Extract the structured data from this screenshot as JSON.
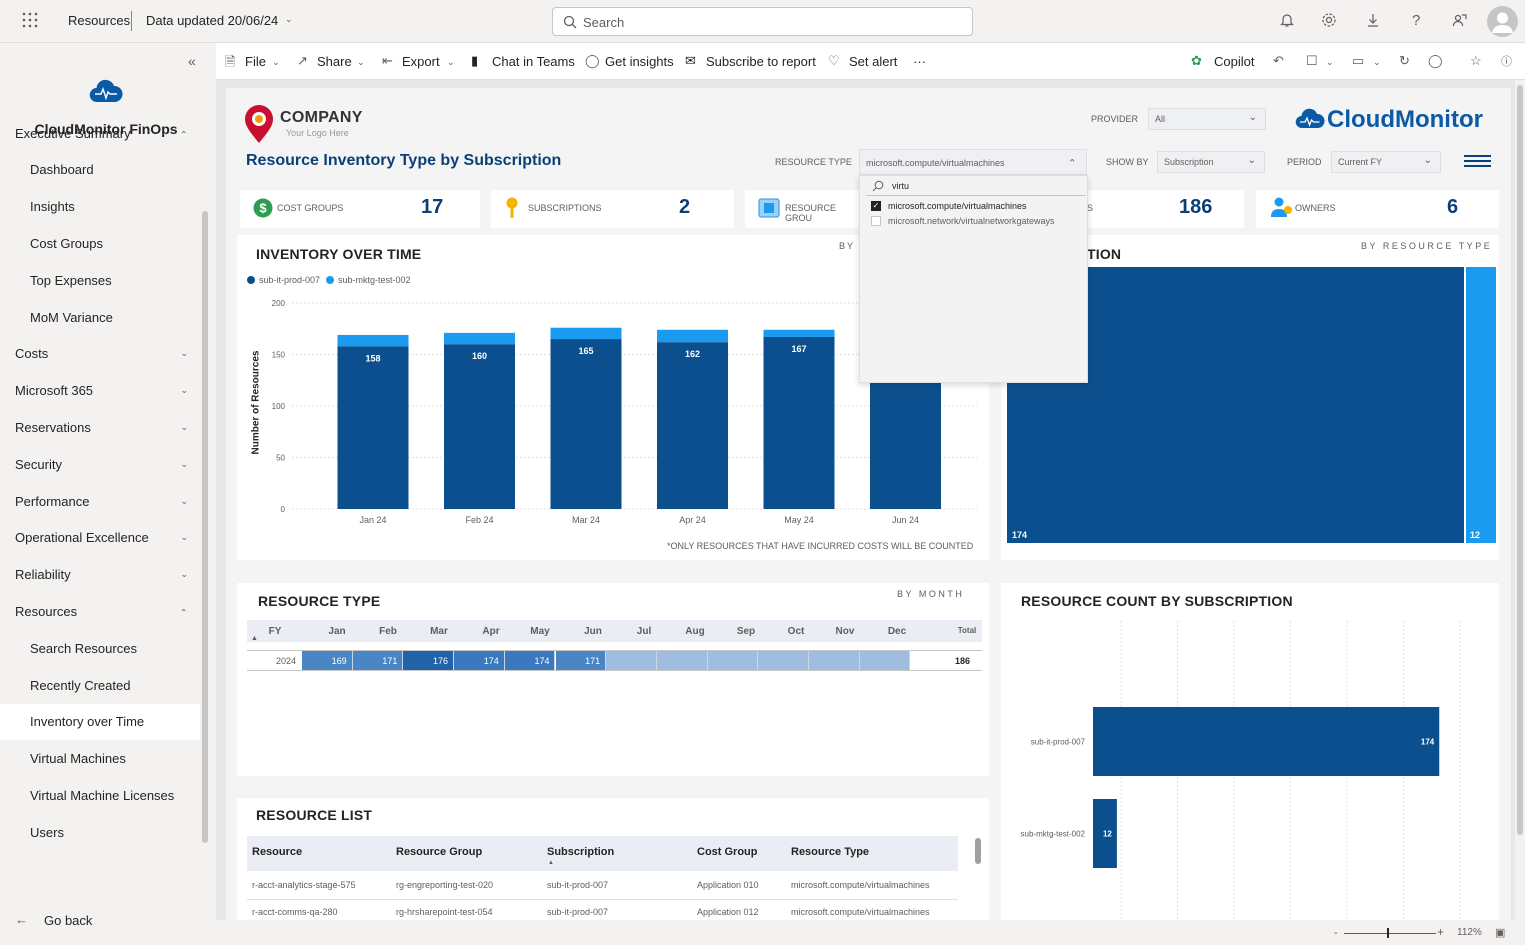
{
  "topbar": {
    "breadcrumb": "Resources",
    "data_updated": "Data updated 20/06/24",
    "search_placeholder": "Search"
  },
  "sidebar": {
    "app_title": "CloudMonitor FinOps",
    "items": [
      {
        "label": "Executive Summary",
        "level": 1,
        "expanded": true
      },
      {
        "label": "Dashboard",
        "level": 2
      },
      {
        "label": "Insights",
        "level": 2
      },
      {
        "label": "Cost Groups",
        "level": 2
      },
      {
        "label": "Top Expenses",
        "level": 2
      },
      {
        "label": "MoM Variance",
        "level": 2
      },
      {
        "label": "Costs",
        "level": 1
      },
      {
        "label": "Microsoft 365",
        "level": 1
      },
      {
        "label": "Reservations",
        "level": 1
      },
      {
        "label": "Security",
        "level": 1
      },
      {
        "label": "Performance",
        "level": 1
      },
      {
        "label": "Operational Excellence",
        "level": 1
      },
      {
        "label": "Reliability",
        "level": 1
      },
      {
        "label": "Resources",
        "level": 1,
        "expanded": true
      },
      {
        "label": "Search Resources",
        "level": 2
      },
      {
        "label": "Recently Created",
        "level": 2
      },
      {
        "label": "Inventory over Time",
        "level": 2,
        "active": true
      },
      {
        "label": "Virtual Machines",
        "level": 2
      },
      {
        "label": "Virtual Machine Licenses",
        "level": 2
      },
      {
        "label": "Users",
        "level": 2
      }
    ],
    "go_back": "Go back"
  },
  "toolbar": {
    "file": "File",
    "share": "Share",
    "export": "Export",
    "chat": "Chat in Teams",
    "insights": "Get insights",
    "subscribe": "Subscribe to report",
    "alert": "Set alert",
    "more": "···",
    "copilot": "Copilot"
  },
  "report": {
    "company": "COMPANY",
    "company_tag": "Your Logo Here",
    "title": "Resource Inventory Type by Subscription",
    "brand": "CloudMonitor",
    "filters": {
      "provider_label": "PROVIDER",
      "provider_value": "All",
      "resource_type_label": "RESOURCE TYPE",
      "resource_type_value": "microsoft.compute/virtualmachines",
      "show_by_label": "SHOW BY",
      "show_by_value": "Subscription",
      "period_label": "PERIOD",
      "period_value": "Current FY"
    },
    "dropdown": {
      "search_text": "virtu",
      "options": [
        {
          "label": "microsoft.compute/virtualmachines",
          "checked": true
        },
        {
          "label": "microsoft.network/virtualnetworkgateways",
          "checked": false
        }
      ]
    },
    "kpis": [
      {
        "label": "COST GROUPS",
        "value": "17"
      },
      {
        "label": "SUBSCRIPTIONS",
        "value": "2"
      },
      {
        "label": "RESOURCE GROU",
        "value": ""
      },
      {
        "label": "S",
        "value": "186"
      },
      {
        "label": "OWNERS",
        "value": "6"
      }
    ],
    "inventory": {
      "title": "INVENTORY OVER TIME",
      "by_label": "BY",
      "ylabel": "Number of Resources",
      "footnote": "*ONLY RESOURCES THAT HAVE INCURRED COSTS WILL BE COUNTED"
    },
    "treemap": {
      "title_fragment": "TION",
      "by_label": "BY RESOURCE TYPE",
      "values": [
        174,
        12
      ]
    },
    "resource_type": {
      "title": "RESOURCE TYPE",
      "by_label": "BY MONTH",
      "headers": [
        "FY",
        "Jan",
        "Feb",
        "Mar",
        "Apr",
        "May",
        "Jun",
        "Jul",
        "Aug",
        "Sep",
        "Oct",
        "Nov",
        "Dec",
        "Total"
      ],
      "row": {
        "fy": "2024",
        "values": [
          "169",
          "171",
          "176",
          "174",
          "174",
          "171",
          "",
          "",
          "",
          "",
          "",
          ""
        ],
        "total": "186"
      }
    },
    "count_by_sub": {
      "title": "RESOURCE COUNT BY SUBSCRIPTION"
    },
    "resource_list": {
      "title": "RESOURCE LIST",
      "headers": [
        "Resource",
        "Resource Group",
        "Subscription",
        "Cost Group",
        "Resource Type"
      ],
      "rows": [
        [
          "r-acct-analytics-stage-575",
          "rg-engreporting-test-020",
          "sub-it-prod-007",
          "Application 010",
          "microsoft.compute/virtualmachines"
        ],
        [
          "r-acct-comms-qa-280",
          "rg-hrsharepoint-test-054",
          "sub-it-prod-007",
          "Application 012",
          "microsoft.compute/virtualmachines"
        ]
      ]
    }
  },
  "status": {
    "zoom": "112%"
  },
  "colors": {
    "dark": "#0b4f8f",
    "light": "#1a9bf0",
    "title": "#0b3f77"
  },
  "chart_data": [
    {
      "type": "bar",
      "title": "INVENTORY OVER TIME",
      "ylabel": "Number of Resources",
      "categories": [
        "Jan 24",
        "Feb 24",
        "Mar 24",
        "Apr 24",
        "May 24",
        "Jun 24"
      ],
      "series": [
        {
          "name": "sub-it-prod-007",
          "values": [
            158,
            160,
            165,
            162,
            167,
            158
          ]
        },
        {
          "name": "sub-mktg-test-002",
          "values": [
            11,
            11,
            11,
            12,
            7,
            13
          ]
        }
      ],
      "ylim": [
        0,
        200
      ],
      "yticks": [
        0,
        50,
        100,
        150,
        200
      ],
      "stacked": true
    },
    {
      "type": "bar",
      "title": "RESOURCE COUNT BY SUBSCRIPTION",
      "orientation": "horizontal",
      "categories": [
        "sub-it-prod-007",
        "sub-mktg-test-002"
      ],
      "values": [
        174,
        12
      ],
      "xlim": [
        0,
        200
      ]
    }
  ]
}
